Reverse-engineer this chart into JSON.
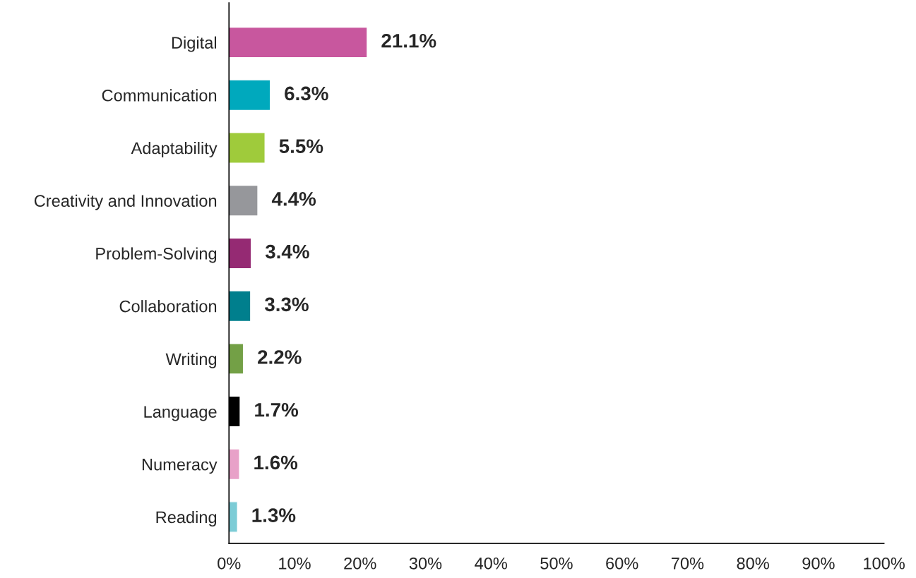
{
  "chart_data": {
    "type": "bar",
    "orientation": "horizontal",
    "categories": [
      "Digital",
      "Communication",
      "Adaptability",
      "Creativity and Innovation",
      "Problem-Solving",
      "Collaboration",
      "Writing",
      "Language",
      "Numeracy",
      "Reading"
    ],
    "values": [
      21.1,
      6.3,
      5.5,
      4.4,
      3.4,
      3.3,
      2.2,
      1.7,
      1.6,
      1.3
    ],
    "colors": [
      "#c8579e",
      "#00a9bd",
      "#9fcb3b",
      "#96979b",
      "#952a73",
      "#007f8d",
      "#73a046",
      "#000000",
      "#e8a1c8",
      "#7cccd6"
    ],
    "value_labels": [
      "21.1%",
      "6.3%",
      "5.5%",
      "4.4%",
      "3.4%",
      "3.3%",
      "2.2%",
      "1.7%",
      "1.6%",
      "1.3%"
    ],
    "xlim": [
      0,
      100
    ],
    "xticks": [
      {
        "value": 0,
        "label": "0%"
      },
      {
        "value": 10,
        "label": "10%"
      },
      {
        "value": 20,
        "label": "20%"
      },
      {
        "value": 30,
        "label": "30%"
      },
      {
        "value": 40,
        "label": "40%"
      },
      {
        "value": 50,
        "label": "50%"
      },
      {
        "value": 60,
        "label": "60%"
      },
      {
        "value": 70,
        "label": "70%"
      },
      {
        "value": 80,
        "label": "80%"
      },
      {
        "value": 90,
        "label": "90%"
      },
      {
        "value": 100,
        "label": "100%"
      }
    ],
    "grid": false,
    "legend": false
  }
}
